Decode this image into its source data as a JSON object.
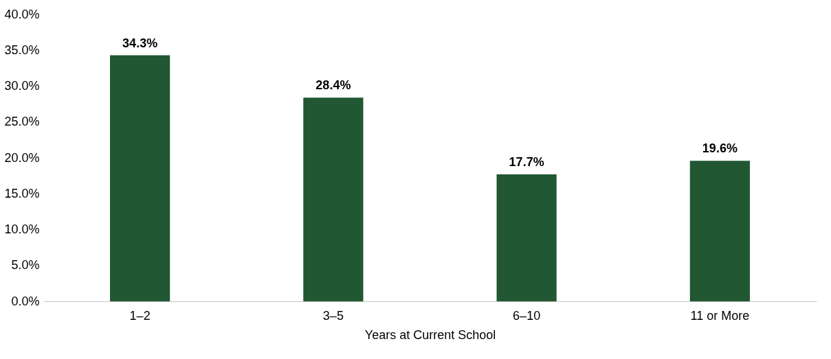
{
  "chart_data": {
    "type": "bar",
    "xlabel": "Years at Current School",
    "categories": [
      "1–2",
      "3–5",
      "6–10",
      "11 or More"
    ],
    "values": [
      34.3,
      28.4,
      17.7,
      19.6
    ],
    "value_labels": [
      "34.3%",
      "28.4%",
      "17.7%",
      "19.6%"
    ],
    "color": "#215732",
    "ylim": [
      0,
      40
    ],
    "yticks": [
      {
        "value": 0,
        "label": "0.0%"
      },
      {
        "value": 5,
        "label": "5.0%"
      },
      {
        "value": 10,
        "label": "10.0%"
      },
      {
        "value": 15,
        "label": "15.0%"
      },
      {
        "value": 20,
        "label": "20.0%"
      },
      {
        "value": 25,
        "label": "25.0%"
      },
      {
        "value": 30,
        "label": "30.0%"
      },
      {
        "value": 35,
        "label": "35.0%"
      },
      {
        "value": 40,
        "label": "40.0%"
      }
    ],
    "grid": false
  }
}
